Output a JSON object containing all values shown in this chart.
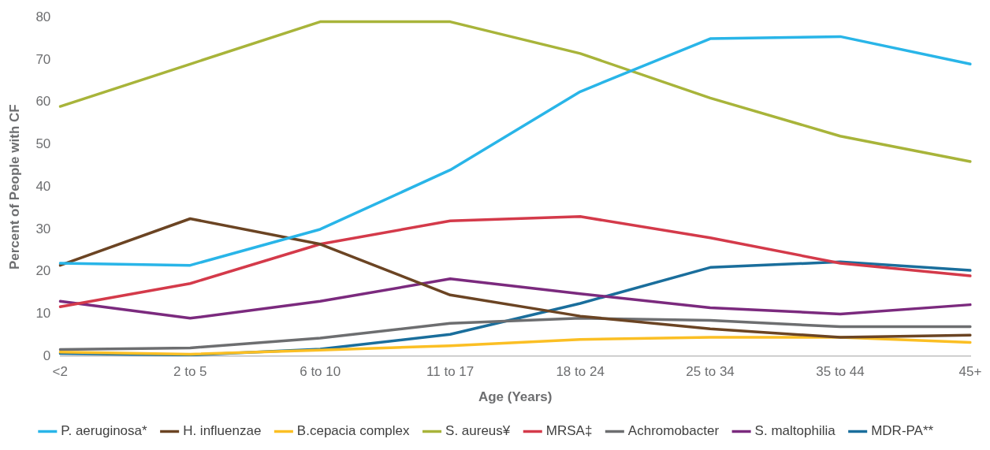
{
  "chart_data": {
    "type": "line",
    "xlabel": "Age (Years)",
    "ylabel": "Percent of People with CF",
    "categories": [
      "<2",
      "2 to 5",
      "6 to 10",
      "11 to 17",
      "18 to 24",
      "25 to 34",
      "35 to 44",
      "45+"
    ],
    "series": [
      {
        "name": "P. aeruginosa*",
        "color": "#29b5e8",
        "values": [
          22,
          21.5,
          30,
          44,
          62.5,
          75,
          75.5,
          69
        ]
      },
      {
        "name": "H. influenzae",
        "color": "#6b4423",
        "values": [
          21.5,
          32.5,
          26.5,
          14.5,
          9.5,
          6.5,
          4.5,
          5
        ]
      },
      {
        "name": "B.cepacia complex",
        "color": "#fbbf24",
        "values": [
          1,
          0.5,
          1.5,
          2.5,
          4,
          4.5,
          4.5,
          3.3
        ]
      },
      {
        "name": "S. aureus¥",
        "color": "#a8b43a",
        "values": [
          59,
          69,
          79,
          79,
          71.5,
          61,
          52,
          46
        ]
      },
      {
        "name": "MRSA‡",
        "color": "#d43a4a",
        "values": [
          11.7,
          17.2,
          26.5,
          32,
          33,
          28,
          22,
          19
        ]
      },
      {
        "name": "Achromobacter",
        "color": "#6d6e70",
        "values": [
          1.6,
          2,
          4.3,
          7.8,
          9,
          8.5,
          7,
          7
        ]
      },
      {
        "name": "S. maltophilia",
        "color": "#7b2a7e",
        "values": [
          13,
          9,
          13,
          18.3,
          14.8,
          11.5,
          10,
          12.2
        ]
      },
      {
        "name": "MDR-PA**",
        "color": "#1a6e9c",
        "values": [
          0.7,
          0.3,
          1.7,
          5.2,
          12.5,
          21,
          22.3,
          20.3
        ]
      }
    ],
    "ylim": [
      0,
      80
    ],
    "yticks": [
      0,
      10,
      20,
      30,
      40,
      50,
      60,
      70,
      80
    ],
    "grid": false,
    "legend": "bottom",
    "marker": "none"
  }
}
